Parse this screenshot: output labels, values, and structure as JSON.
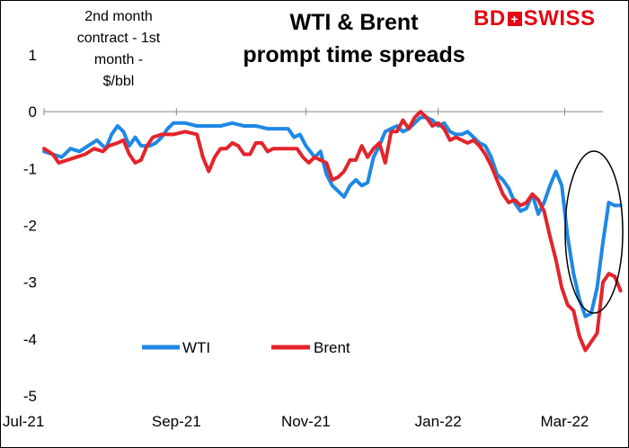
{
  "brand": {
    "part1": "BD",
    "mark": "+",
    "part2": "SWISS",
    "color": "#e30613"
  },
  "chart_data": {
    "type": "line",
    "title": [
      "WTI & Brent",
      "prompt time spreads"
    ],
    "ylabel": [
      "2nd month",
      "contract - 1st",
      "month -",
      "$/bbl"
    ],
    "xlabel": "",
    "ylim": [
      -5,
      1
    ],
    "yticks": [
      1,
      0,
      -1,
      -2,
      -3,
      -4,
      -5
    ],
    "xlim": [
      0,
      190
    ],
    "xticks": [
      {
        "x": 0,
        "label": "Jul-21"
      },
      {
        "x": 45,
        "label": "Sep-21"
      },
      {
        "x": 89,
        "label": "Nov-21"
      },
      {
        "x": 134,
        "label": "Jan-22"
      },
      {
        "x": 177,
        "label": "Mar-22"
      }
    ],
    "legend": {
      "position": "bottom-center"
    },
    "annotations": [
      {
        "type": "ellipse",
        "note": "circle around latest readings"
      }
    ],
    "series": [
      {
        "name": "WTI",
        "color": "#1e88e5",
        "points": [
          [
            0,
            -0.7
          ],
          [
            3,
            -0.75
          ],
          [
            6,
            -0.8
          ],
          [
            9,
            -0.65
          ],
          [
            12,
            -0.7
          ],
          [
            15,
            -0.6
          ],
          [
            18,
            -0.5
          ],
          [
            21,
            -0.65
          ],
          [
            23,
            -0.4
          ],
          [
            25,
            -0.25
          ],
          [
            27,
            -0.35
          ],
          [
            29,
            -0.6
          ],
          [
            31,
            -0.45
          ],
          [
            33,
            -0.6
          ],
          [
            36,
            -0.6
          ],
          [
            38,
            -0.55
          ],
          [
            40,
            -0.45
          ],
          [
            42,
            -0.3
          ],
          [
            44,
            -0.2
          ],
          [
            48,
            -0.2
          ],
          [
            52,
            -0.25
          ],
          [
            56,
            -0.25
          ],
          [
            60,
            -0.25
          ],
          [
            64,
            -0.2
          ],
          [
            68,
            -0.25
          ],
          [
            72,
            -0.25
          ],
          [
            76,
            -0.3
          ],
          [
            80,
            -0.3
          ],
          [
            83,
            -0.3
          ],
          [
            85,
            -0.45
          ],
          [
            87,
            -0.4
          ],
          [
            89,
            -0.6
          ],
          [
            92,
            -0.8
          ],
          [
            94,
            -0.7
          ],
          [
            96,
            -1.1
          ],
          [
            98,
            -1.3
          ],
          [
            100,
            -1.4
          ],
          [
            102,
            -1.5
          ],
          [
            104,
            -1.3
          ],
          [
            106,
            -1.2
          ],
          [
            108,
            -1.3
          ],
          [
            110,
            -1.25
          ],
          [
            112,
            -0.8
          ],
          [
            114,
            -0.6
          ],
          [
            116,
            -0.35
          ],
          [
            118,
            -0.3
          ],
          [
            120,
            -0.25
          ],
          [
            122,
            -0.35
          ],
          [
            124,
            -0.3
          ],
          [
            126,
            -0.2
          ],
          [
            128,
            -0.1
          ],
          [
            130,
            -0.1
          ],
          [
            132,
            -0.15
          ],
          [
            134,
            -0.25
          ],
          [
            136,
            -0.2
          ],
          [
            138,
            -0.35
          ],
          [
            140,
            -0.4
          ],
          [
            142,
            -0.4
          ],
          [
            144,
            -0.35
          ],
          [
            146,
            -0.45
          ],
          [
            148,
            -0.55
          ],
          [
            150,
            -0.6
          ],
          [
            152,
            -0.8
          ],
          [
            154,
            -1.1
          ],
          [
            156,
            -1.2
          ],
          [
            158,
            -1.35
          ],
          [
            160,
            -1.6
          ],
          [
            162,
            -1.75
          ],
          [
            164,
            -1.7
          ],
          [
            166,
            -1.45
          ],
          [
            168,
            -1.8
          ],
          [
            170,
            -1.6
          ],
          [
            172,
            -1.3
          ],
          [
            174,
            -1.05
          ],
          [
            176,
            -1.3
          ],
          [
            178,
            -2.2
          ],
          [
            180,
            -2.85
          ],
          [
            182,
            -3.3
          ],
          [
            184,
            -3.6
          ],
          [
            186,
            -3.55
          ],
          [
            188,
            -3.1
          ],
          [
            190,
            -2.3
          ],
          [
            192,
            -1.6
          ],
          [
            194,
            -1.65
          ],
          [
            196,
            -1.65
          ]
        ]
      },
      {
        "name": "Brent",
        "color": "#e3242b",
        "points": [
          [
            0,
            -0.65
          ],
          [
            3,
            -0.75
          ],
          [
            5,
            -0.9
          ],
          [
            8,
            -0.85
          ],
          [
            11,
            -0.8
          ],
          [
            14,
            -0.75
          ],
          [
            17,
            -0.65
          ],
          [
            20,
            -0.7
          ],
          [
            22,
            -0.6
          ],
          [
            25,
            -0.55
          ],
          [
            27,
            -0.5
          ],
          [
            29,
            -0.75
          ],
          [
            31,
            -0.9
          ],
          [
            33,
            -0.85
          ],
          [
            35,
            -0.6
          ],
          [
            37,
            -0.45
          ],
          [
            40,
            -0.4
          ],
          [
            44,
            -0.4
          ],
          [
            48,
            -0.35
          ],
          [
            52,
            -0.4
          ],
          [
            54,
            -0.8
          ],
          [
            56,
            -1.05
          ],
          [
            58,
            -0.8
          ],
          [
            60,
            -0.65
          ],
          [
            62,
            -0.65
          ],
          [
            64,
            -0.55
          ],
          [
            66,
            -0.6
          ],
          [
            68,
            -0.75
          ],
          [
            70,
            -0.75
          ],
          [
            72,
            -0.55
          ],
          [
            74,
            -0.55
          ],
          [
            76,
            -0.7
          ],
          [
            78,
            -0.65
          ],
          [
            82,
            -0.65
          ],
          [
            86,
            -0.65
          ],
          [
            88,
            -0.8
          ],
          [
            90,
            -0.9
          ],
          [
            92,
            -0.8
          ],
          [
            94,
            -0.85
          ],
          [
            96,
            -0.9
          ],
          [
            98,
            -1.2
          ],
          [
            100,
            -1.15
          ],
          [
            102,
            -1.05
          ],
          [
            104,
            -0.85
          ],
          [
            106,
            -0.85
          ],
          [
            108,
            -0.6
          ],
          [
            110,
            -0.8
          ],
          [
            112,
            -0.65
          ],
          [
            114,
            -0.55
          ],
          [
            116,
            -0.9
          ],
          [
            118,
            -0.35
          ],
          [
            120,
            -0.35
          ],
          [
            122,
            -0.15
          ],
          [
            124,
            -0.3
          ],
          [
            126,
            -0.1
          ],
          [
            128,
            0.0
          ],
          [
            130,
            -0.1
          ],
          [
            132,
            -0.25
          ],
          [
            134,
            -0.2
          ],
          [
            136,
            -0.3
          ],
          [
            138,
            -0.5
          ],
          [
            140,
            -0.45
          ],
          [
            142,
            -0.5
          ],
          [
            144,
            -0.55
          ],
          [
            146,
            -0.5
          ],
          [
            148,
            -0.6
          ],
          [
            150,
            -0.75
          ],
          [
            152,
            -0.95
          ],
          [
            154,
            -1.2
          ],
          [
            156,
            -1.45
          ],
          [
            158,
            -1.6
          ],
          [
            160,
            -1.55
          ],
          [
            162,
            -1.65
          ],
          [
            164,
            -1.6
          ],
          [
            166,
            -1.45
          ],
          [
            168,
            -1.55
          ],
          [
            170,
            -1.75
          ],
          [
            172,
            -2.2
          ],
          [
            174,
            -2.6
          ],
          [
            176,
            -3.1
          ],
          [
            178,
            -3.4
          ],
          [
            180,
            -3.5
          ],
          [
            182,
            -3.95
          ],
          [
            184,
            -4.2
          ],
          [
            186,
            -4.05
          ],
          [
            188,
            -3.9
          ],
          [
            190,
            -3.0
          ],
          [
            192,
            -2.85
          ],
          [
            194,
            -2.9
          ],
          [
            196,
            -3.15
          ]
        ]
      }
    ]
  }
}
